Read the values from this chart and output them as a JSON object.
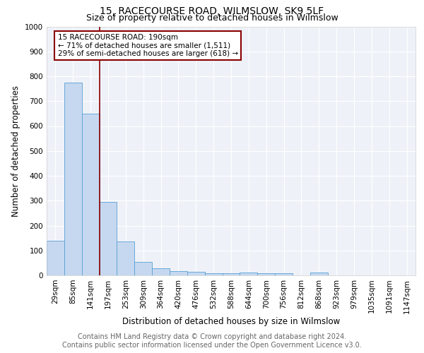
{
  "title": "15, RACECOURSE ROAD, WILMSLOW, SK9 5LF",
  "subtitle": "Size of property relative to detached houses in Wilmslow",
  "xlabel": "Distribution of detached houses by size in Wilmslow",
  "ylabel": "Number of detached properties",
  "categories": [
    "29sqm",
    "85sqm",
    "141sqm",
    "197sqm",
    "253sqm",
    "309sqm",
    "364sqm",
    "420sqm",
    "476sqm",
    "532sqm",
    "588sqm",
    "644sqm",
    "700sqm",
    "756sqm",
    "812sqm",
    "868sqm",
    "923sqm",
    "979sqm",
    "1035sqm",
    "1091sqm",
    "1147sqm"
  ],
  "values": [
    140,
    775,
    650,
    295,
    135,
    55,
    28,
    18,
    15,
    8,
    8,
    10,
    8,
    8,
    0,
    10,
    0,
    0,
    0,
    0,
    0
  ],
  "bar_color": "#c5d8f0",
  "bar_edge_color": "#5a9fd4",
  "vline_color": "#8b0000",
  "annotation_text": "15 RACECOURSE ROAD: 190sqm\n← 71% of detached houses are smaller (1,511)\n29% of semi-detached houses are larger (618) →",
  "annotation_box_color": "#8b0000",
  "ylim": [
    0,
    1000
  ],
  "yticks": [
    0,
    100,
    200,
    300,
    400,
    500,
    600,
    700,
    800,
    900,
    1000
  ],
  "footer_line1": "Contains HM Land Registry data © Crown copyright and database right 2024.",
  "footer_line2": "Contains public sector information licensed under the Open Government Licence v3.0.",
  "background_color": "#eef2f8",
  "grid_color": "#ffffff",
  "title_fontsize": 10,
  "subtitle_fontsize": 9,
  "axis_label_fontsize": 8.5,
  "tick_fontsize": 7.5,
  "annotation_fontsize": 7.5,
  "footer_fontsize": 7
}
